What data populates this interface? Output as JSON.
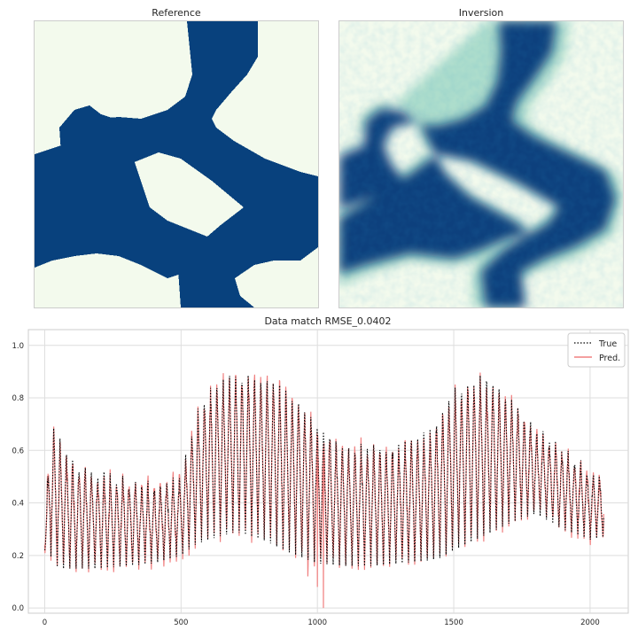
{
  "panels": {
    "reference_title": "Reference",
    "inversion_title": "Inversion"
  },
  "colors": {
    "channel": "#08417d",
    "background": "#f3faed",
    "true_line": "#000000",
    "pred_line": "#f08080",
    "grid": "#d9d9d9"
  },
  "chart_data": [
    {
      "type": "heatmap",
      "title": "Reference",
      "description_values": "binary facies map, two classes"
    },
    {
      "type": "heatmap",
      "title": "Inversion",
      "description_values": "continuous facies probability map"
    },
    {
      "type": "line",
      "title": "Data match RMSE_0.0402",
      "xlim": [
        -60,
        2140
      ],
      "ylim": [
        -0.02,
        1.06
      ],
      "xticks": [
        "0",
        "500",
        "1000",
        "1500",
        "2000"
      ],
      "yticks": [
        "0.0",
        "0.2",
        "0.4",
        "0.6",
        "0.8",
        "1.0"
      ],
      "grid": true,
      "legend_position": "top-right",
      "legend": [
        "True",
        "Pred."
      ],
      "series": [
        {
          "name": "True",
          "envelope_x": [
            0,
            20,
            50,
            100,
            200,
            300,
            400,
            500,
            550,
            600,
            700,
            800,
            900,
            1000,
            1100,
            1200,
            1300,
            1400,
            1450,
            1500,
            1600,
            1700,
            1800,
            1900,
            2000,
            2050
          ],
          "upper": [
            0.24,
            0.7,
            0.65,
            0.55,
            0.51,
            0.49,
            0.47,
            0.5,
            0.72,
            0.83,
            0.9,
            0.88,
            0.83,
            0.7,
            0.62,
            0.61,
            0.62,
            0.66,
            0.73,
            0.83,
            0.88,
            0.8,
            0.68,
            0.6,
            0.52,
            0.5
          ],
          "lower": [
            0.22,
            0.2,
            0.15,
            0.15,
            0.15,
            0.16,
            0.17,
            0.2,
            0.24,
            0.26,
            0.29,
            0.26,
            0.21,
            0.17,
            0.16,
            0.16,
            0.17,
            0.18,
            0.19,
            0.22,
            0.27,
            0.32,
            0.36,
            0.3,
            0.26,
            0.27
          ]
        },
        {
          "name": "Pred.",
          "outlier_x": [
            965,
            1000,
            1022
          ],
          "outlier_y": [
            0.12,
            0.08,
            0.0
          ]
        }
      ]
    }
  ]
}
